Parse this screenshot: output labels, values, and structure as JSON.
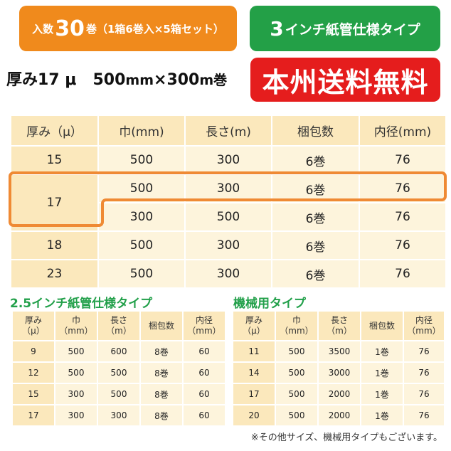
{
  "badges": {
    "qty_pre": "入数",
    "qty_num": "30",
    "qty_post": "巻（1箱6巻入×5箱セット）",
    "core_num": "3",
    "core_post": "インチ紙管仕様タイプ",
    "shipping": "本州送料無料"
  },
  "spec": {
    "thickness_label": "厚み17 μ",
    "dims_w": "500",
    "dims_w_unit": "mm",
    "dims_x": "×",
    "dims_l": "300",
    "dims_l_unit": "m巻"
  },
  "colors": {
    "orange": "#f08a1c",
    "green": "#23a047",
    "red": "#e51d1d",
    "header_bg": "#fbe8bc",
    "cell_bg": "#fdf4dc"
  },
  "main_table": {
    "headers": [
      "厚み（μ）",
      "巾(mm)",
      "長さ(m)",
      "梱包数",
      "内径(mm)"
    ],
    "rows": [
      {
        "thickness": "15",
        "width": "500",
        "length": "300",
        "pack": "6巻",
        "inner": "76"
      },
      {
        "thickness": "17",
        "width": "500",
        "length": "300",
        "pack": "6巻",
        "inner": "76"
      },
      {
        "thickness": "",
        "width": "300",
        "length": "500",
        "pack": "6巻",
        "inner": "76"
      },
      {
        "thickness": "18",
        "width": "500",
        "length": "300",
        "pack": "6巻",
        "inner": "76"
      },
      {
        "thickness": "23",
        "width": "500",
        "length": "300",
        "pack": "6巻",
        "inner": "76"
      }
    ]
  },
  "sub_table_1": {
    "title": "2.5インチ紙管仕様タイプ",
    "headers": [
      "厚み\n（μ）",
      "巾\n（mm）",
      "長さ\n（m）",
      "梱包数",
      "内径\n（mm）"
    ],
    "rows": [
      [
        "9",
        "500",
        "600",
        "8巻",
        "60"
      ],
      [
        "12",
        "500",
        "500",
        "8巻",
        "60"
      ],
      [
        "15",
        "300",
        "500",
        "8巻",
        "60"
      ],
      [
        "17",
        "300",
        "300",
        "8巻",
        "60"
      ]
    ]
  },
  "sub_table_2": {
    "title": "機械用タイプ",
    "headers": [
      "厚み\n（μ）",
      "巾\n（mm）",
      "長さ\n（m）",
      "梱包数",
      "内径\n（mm）"
    ],
    "rows": [
      [
        "11",
        "500",
        "3500",
        "1巻",
        "76"
      ],
      [
        "14",
        "500",
        "3000",
        "1巻",
        "76"
      ],
      [
        "17",
        "500",
        "2000",
        "1巻",
        "76"
      ],
      [
        "20",
        "500",
        "2000",
        "1巻",
        "76"
      ]
    ]
  },
  "footnote": "※その他サイズ、機械用タイプもございます。"
}
